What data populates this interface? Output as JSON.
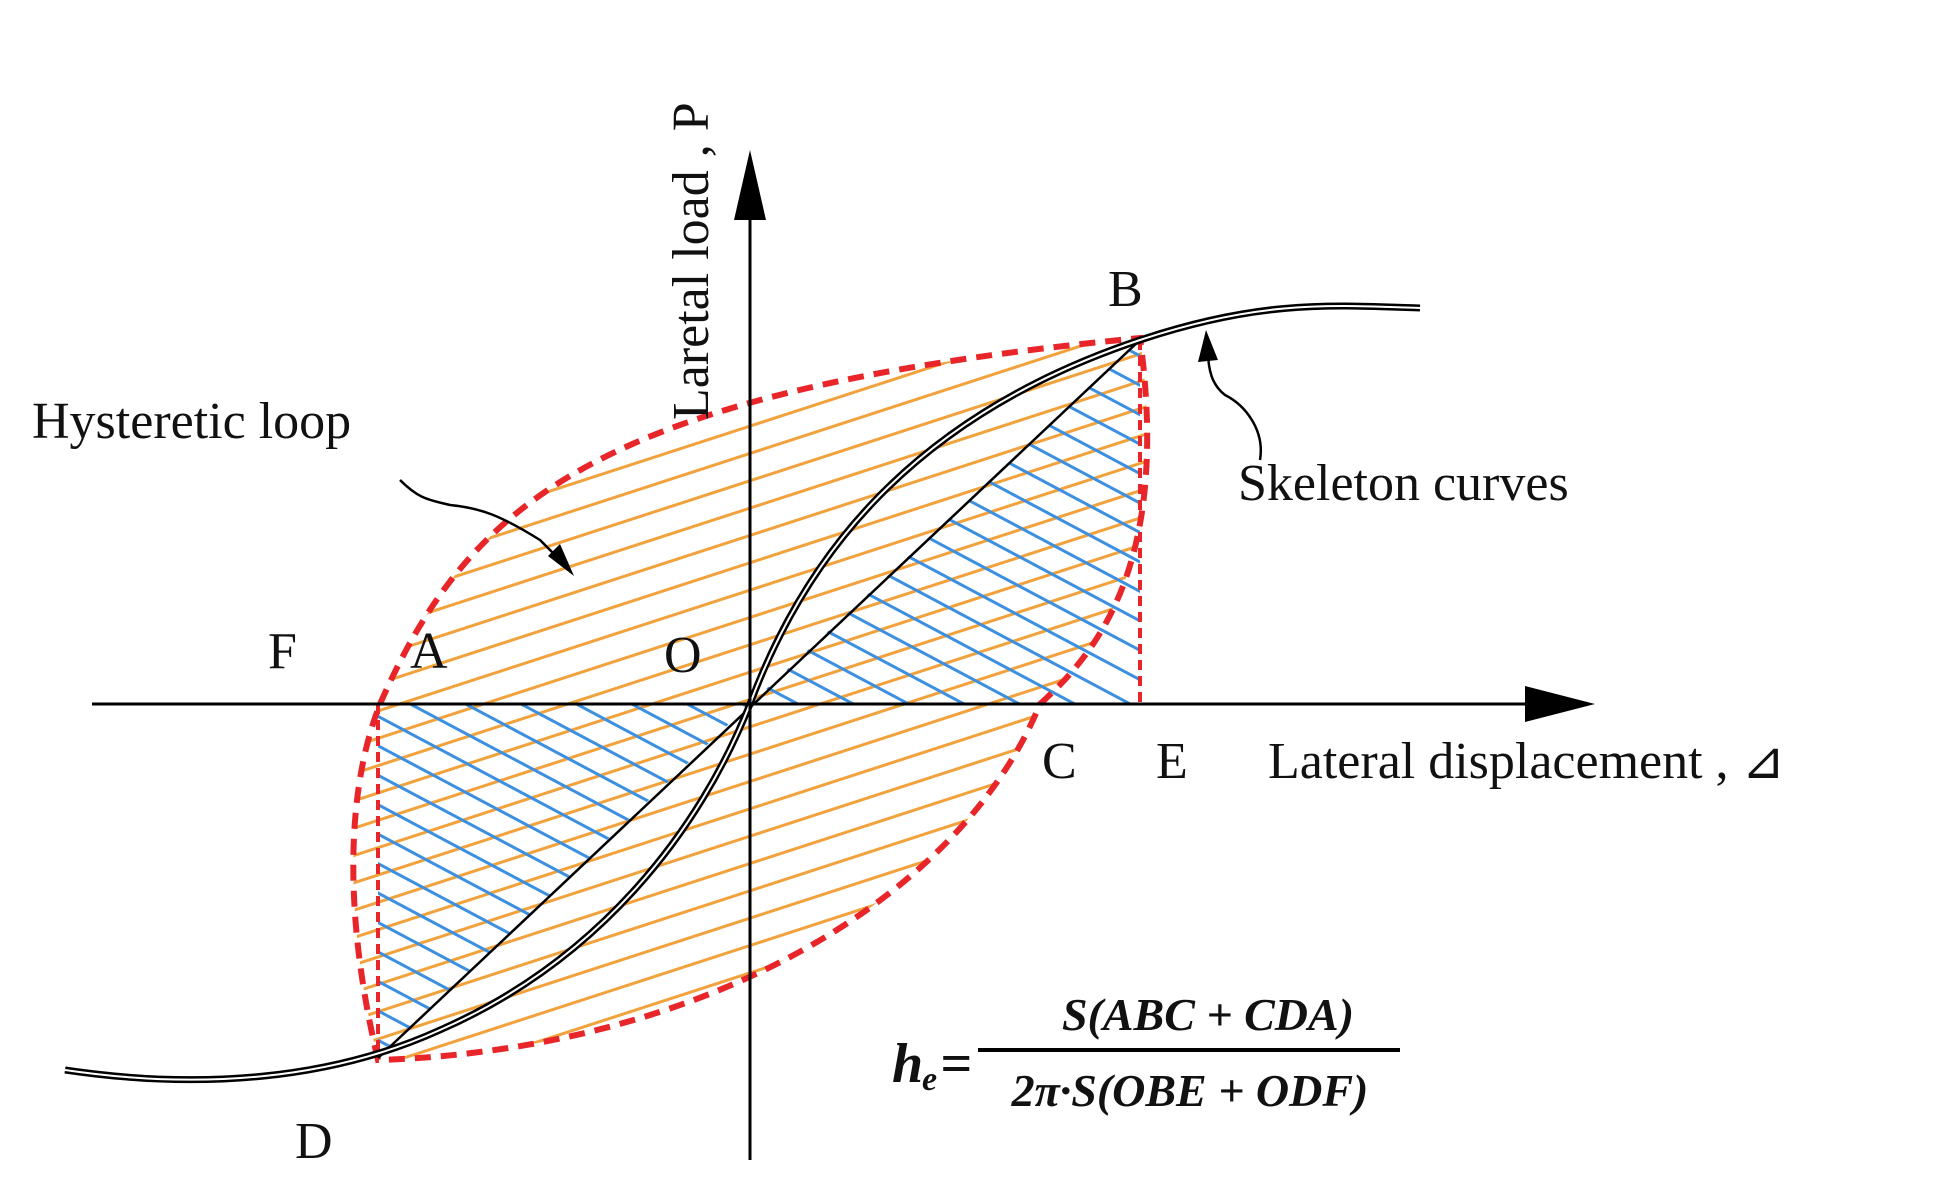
{
  "axes": {
    "y_label": "Laretal load , P",
    "x_label": "Lateral displacement , ⊿"
  },
  "points": {
    "O": "O",
    "A": "A",
    "B": "B",
    "C": "C",
    "D": "D",
    "E": "E",
    "F": "F"
  },
  "annotations": {
    "hysteretic_loop": "Hysteretic loop",
    "skeleton_curves": "Skeleton curves"
  },
  "formula": {
    "lhs": "h",
    "subscript": "e",
    "equals": "=",
    "numerator": "S(ABC + CDA)",
    "denominator": "2π·S(OBE + ODF)"
  },
  "colors": {
    "loop_outline": "#e8262a",
    "orange_hatch": "#f2a23c",
    "blue_hatch": "#3d8fe0",
    "axis": "#000000"
  }
}
